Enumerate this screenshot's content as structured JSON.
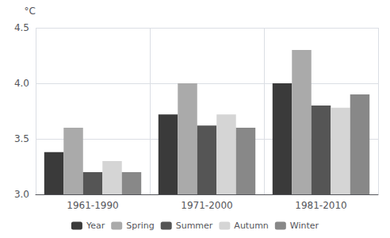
{
  "chart_data": {
    "type": "bar",
    "ylabel": "°C",
    "categories": [
      "1961-1990",
      "1971-2000",
      "1981-2010"
    ],
    "series": [
      {
        "name": "Year",
        "color": "#3a3a3a",
        "values": [
          3.38,
          3.72,
          4.0
        ]
      },
      {
        "name": "Spring",
        "color": "#aaaaaa",
        "values": [
          3.6,
          4.0,
          4.3
        ]
      },
      {
        "name": "Summer",
        "color": "#555555",
        "values": [
          3.2,
          3.62,
          3.8
        ]
      },
      {
        "name": "Autumn",
        "color": "#d5d5d5",
        "values": [
          3.3,
          3.72,
          3.78
        ]
      },
      {
        "name": "Winter",
        "color": "#888888",
        "values": [
          3.2,
          3.6,
          3.9
        ]
      }
    ],
    "ylim": [
      3.0,
      4.5
    ],
    "yticks": [
      {
        "value": 3.0,
        "label": "3.0"
      },
      3.5,
      {
        "value": 4.0,
        "label": "4.0"
      },
      4.5
    ],
    "grid": true,
    "legend": "bottom"
  }
}
